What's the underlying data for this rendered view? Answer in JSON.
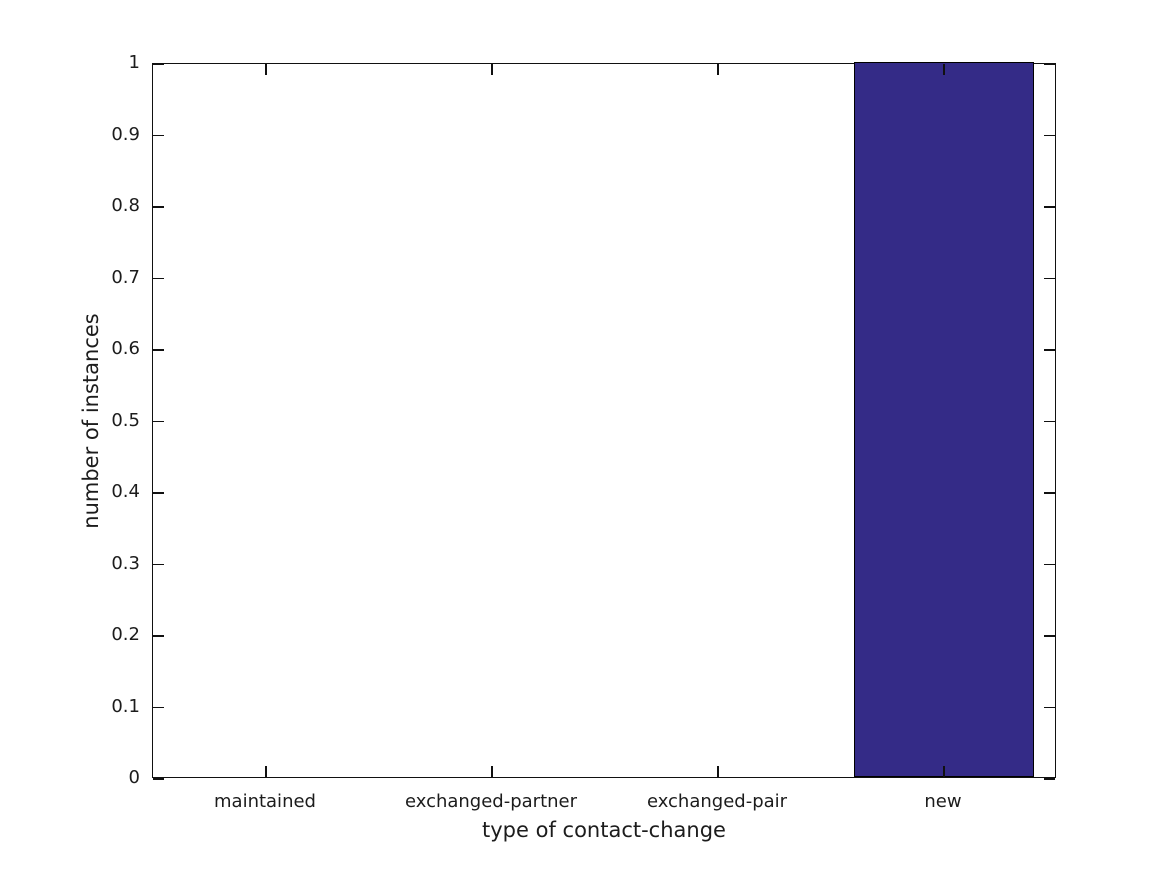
{
  "chart_data": {
    "type": "bar",
    "title": "",
    "categories": [
      "maintained",
      "exchanged-partner",
      "exchanged-pair",
      "new"
    ],
    "values": [
      0,
      0,
      0,
      1
    ],
    "xlabel": "type of contact-change",
    "ylabel": "number of instances",
    "ylim": [
      0,
      1
    ],
    "yticks": [
      0,
      0.1,
      0.2,
      0.3,
      0.4,
      0.5,
      0.6,
      0.7,
      0.8,
      0.9,
      1
    ],
    "ytick_labels": [
      "0",
      "0.1",
      "0.2",
      "0.3",
      "0.4",
      "0.5",
      "0.6",
      "0.7",
      "0.8",
      "0.9",
      "1"
    ],
    "bar_width_fraction": 0.8,
    "bar_color": "#342b87",
    "bar_edge_color": "#000000",
    "axis_color": "#111111",
    "text_color": "#1c1c1c",
    "grid": false,
    "legend": null,
    "box": true,
    "tick_direction": "in"
  }
}
